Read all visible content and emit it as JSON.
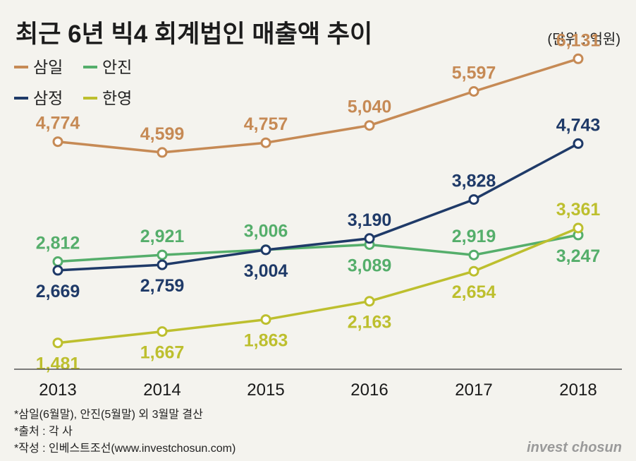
{
  "chart_data": {
    "type": "line",
    "title": "최근 6년 빅4 회계법인 매출액 추이",
    "unit_label": "(단위 : 억원)",
    "categories": [
      "2013",
      "2014",
      "2015",
      "2016",
      "2017",
      "2018"
    ],
    "series": [
      {
        "name": "삼일",
        "color": "#c68a55",
        "values": [
          4774,
          4599,
          4757,
          5040,
          5597,
          6131
        ],
        "labels": [
          "4,774",
          "4,599",
          "4,757",
          "5,040",
          "5,597",
          "6,131"
        ],
        "label_pos": [
          "above",
          "above",
          "above",
          "above",
          "above",
          "above"
        ]
      },
      {
        "name": "안진",
        "color": "#55ae6b",
        "values": [
          2812,
          2921,
          3006,
          3089,
          2919,
          3247
        ],
        "labels": [
          "2,812",
          "2,921",
          "3,006",
          "3,089",
          "2,919",
          "3,247"
        ],
        "label_pos": [
          "above",
          "above",
          "above",
          "below",
          "above",
          "below"
        ]
      },
      {
        "name": "삼정",
        "color": "#1f3a68",
        "values": [
          2669,
          2759,
          3004,
          3190,
          3828,
          4743
        ],
        "labels": [
          "2,669",
          "2,759",
          "3,004",
          "3,190",
          "3,828",
          "4,743"
        ],
        "label_pos": [
          "below",
          "below",
          "below",
          "above",
          "above",
          "above"
        ]
      },
      {
        "name": "한영",
        "color": "#bdbf2e",
        "values": [
          1481,
          1667,
          1863,
          2163,
          2654,
          3361
        ],
        "labels": [
          "1,481",
          "1,667",
          "1,863",
          "2,163",
          "2,654",
          "3,361"
        ],
        "label_pos": [
          "below",
          "below",
          "below",
          "below",
          "below",
          "above"
        ]
      }
    ],
    "ylim": [
      1200,
      6400
    ],
    "grid": false,
    "legend": "top-left"
  },
  "notes": [
    "*삼일(6월말), 안진(5월말) 외 3월말 결산",
    "*출처 : 각 사",
    "*작성 : 인베스트조선(www.investchosun.com)"
  ],
  "brand": {
    "part1": "invest",
    "part2": "chosun"
  }
}
